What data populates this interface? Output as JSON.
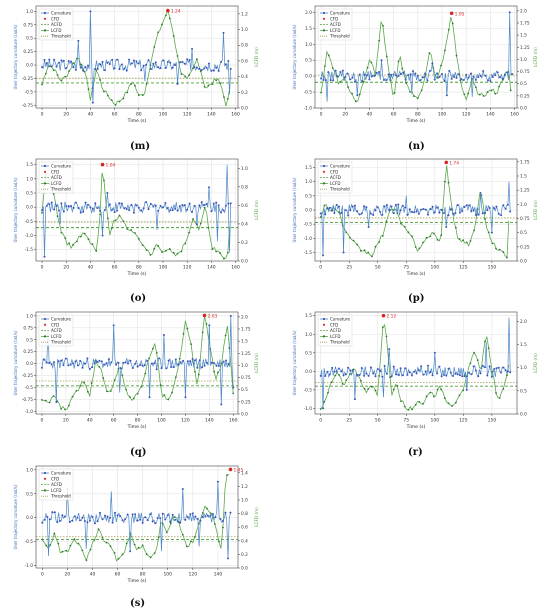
{
  "legend": {
    "curvature": "Curvature",
    "cfd": "CFD",
    "acfd": "ACFD",
    "lcfd": "LCFD",
    "threshold": "Threshold"
  },
  "colors": {
    "curvature_line": "#4a86c8",
    "curvature_marker": "#3a56b8",
    "lcfd_line": "#5aa84a",
    "lcfd_marker": "#2e7a2e",
    "acfd": "#4c9e3a",
    "threshold": "#9c9c4c",
    "cfd": "#d62728",
    "left_axis": "#3b6fb6",
    "right_axis": "#4c9e3a"
  },
  "chart_data": [
    {
      "id": "m",
      "type": "line",
      "caption": "(m)",
      "xlabel": "Time (s)",
      "ylabel_left": "User trajectory curvature (rad/s)",
      "ylabel_right": "LCFD (m)",
      "xlim": [
        -5,
        162
      ],
      "xticks": [
        0,
        20,
        40,
        60,
        80,
        100,
        120,
        140,
        160
      ],
      "ylim_left": [
        -0.8,
        1.1
      ],
      "yticks_left": [
        -0.75,
        -0.5,
        -0.25,
        0.0,
        0.25,
        0.5,
        0.75,
        1.0
      ],
      "ylim_right": [
        0.0,
        1.3
      ],
      "yticks_right": [
        0.0,
        0.2,
        0.4,
        0.6,
        0.8,
        1.0,
        1.2
      ],
      "acfd": 0.32,
      "threshold": 0.38,
      "cfd_peak": {
        "x": 104,
        "label": "1.24",
        "value": 1.24
      },
      "duration": 156,
      "lcfd_x": [
        0,
        5,
        10,
        15,
        20,
        25,
        30,
        35,
        38,
        40,
        45,
        50,
        55,
        60,
        65,
        70,
        75,
        80,
        85,
        90,
        95,
        100,
        104,
        108,
        112,
        115,
        120,
        125,
        128,
        130,
        135,
        140,
        145,
        150,
        152,
        156
      ],
      "lcfd_y": [
        0.3,
        0.55,
        0.5,
        0.35,
        0.4,
        0.55,
        0.65,
        0.45,
        0.3,
        0.1,
        0.5,
        0.25,
        0.15,
        0.05,
        0.1,
        0.2,
        0.35,
        0.15,
        0.2,
        0.6,
        0.9,
        1.1,
        1.24,
        1.0,
        0.65,
        0.45,
        0.35,
        0.5,
        0.62,
        0.55,
        0.25,
        0.3,
        0.4,
        0.2,
        0.0,
        0.3
      ],
      "spikes": [
        [
          40,
          1.0
        ],
        [
          42,
          -0.7
        ],
        [
          30,
          0.45
        ],
        [
          150,
          0.6
        ],
        [
          155,
          -0.55
        ],
        [
          112,
          -0.35
        ],
        [
          85,
          -0.3
        ],
        [
          124,
          0.3
        ]
      ]
    },
    {
      "id": "n",
      "type": "line",
      "caption": "(n)",
      "xlabel": "Time (s)",
      "ylabel_left": "User trajectory curvature (rad/s)",
      "ylabel_right": "LCFD (m)",
      "xlim": [
        -5,
        162
      ],
      "xticks": [
        0,
        20,
        40,
        60,
        80,
        100,
        120,
        140,
        160
      ],
      "ylim_left": [
        -1.0,
        2.2
      ],
      "yticks_left": [
        -1.0,
        -0.5,
        0.0,
        0.5,
        1.0,
        1.5,
        2.0
      ],
      "ylim_right": [
        0.0,
        2.1
      ],
      "yticks_right": [
        0.0,
        0.25,
        0.5,
        0.75,
        1.0,
        1.25,
        1.5,
        1.75,
        2.0
      ],
      "acfd": 0.53,
      "threshold": 0.68,
      "cfd_peak": {
        "x": 108,
        "label": "1.95",
        "value": 1.95
      },
      "duration": 158,
      "lcfd_x": [
        0,
        5,
        10,
        15,
        20,
        25,
        30,
        35,
        40,
        45,
        50,
        55,
        60,
        65,
        70,
        75,
        80,
        85,
        90,
        95,
        100,
        104,
        108,
        112,
        116,
        120,
        125,
        130,
        135,
        140,
        145,
        150,
        155,
        158
      ],
      "lcfd_y": [
        0.3,
        1.2,
        0.8,
        0.5,
        0.6,
        0.3,
        0.1,
        0.5,
        1.0,
        0.7,
        1.9,
        0.9,
        0.2,
        1.1,
        0.5,
        0.3,
        0.2,
        0.5,
        1.2,
        0.6,
        0.9,
        1.4,
        1.95,
        1.1,
        0.4,
        0.2,
        0.6,
        0.3,
        0.25,
        0.4,
        0.3,
        0.6,
        0.8,
        0.1
      ],
      "spikes": [
        [
          5,
          -0.8
        ],
        [
          30,
          -0.6
        ],
        [
          50,
          0.5
        ],
        [
          75,
          -0.55
        ],
        [
          104,
          -0.6
        ],
        [
          125,
          -0.65
        ],
        [
          156,
          2.0
        ],
        [
          92,
          0.4
        ]
      ]
    },
    {
      "id": "o",
      "type": "line",
      "caption": "(o)",
      "xlabel": "Time (s)",
      "ylabel_left": "User trajectory curvature (rad/s)",
      "ylabel_right": "LCFD (m)",
      "xlim": [
        -5,
        162
      ],
      "xticks": [
        0,
        20,
        40,
        60,
        80,
        100,
        120,
        140,
        160
      ],
      "ylim_left": [
        -1.9,
        1.7
      ],
      "yticks_left": [
        -1.5,
        -1.0,
        -0.5,
        0.0,
        0.5,
        1.0,
        1.5
      ],
      "ylim_right": [
        0.0,
        1.1
      ],
      "yticks_right": [
        0.0,
        0.2,
        0.4,
        0.6,
        0.8,
        1.0
      ],
      "acfd": 0.36,
      "threshold": 0.42,
      "cfd_peak": {
        "x": 50,
        "label": "1.04",
        "value": 1.04
      },
      "duration": 156,
      "lcfd_x": [
        0,
        3,
        6,
        10,
        15,
        20,
        25,
        30,
        35,
        40,
        45,
        48,
        50,
        53,
        56,
        60,
        65,
        70,
        75,
        80,
        85,
        90,
        95,
        100,
        105,
        110,
        115,
        120,
        125,
        130,
        135,
        140,
        145,
        150,
        153,
        156
      ],
      "lcfd_y": [
        0.5,
        0.95,
        0.85,
        0.7,
        0.35,
        0.2,
        0.15,
        0.25,
        0.3,
        0.2,
        0.1,
        0.5,
        1.04,
        0.6,
        0.3,
        0.45,
        0.5,
        0.35,
        0.3,
        0.25,
        0.15,
        0.05,
        0.2,
        0.1,
        0.15,
        0.05,
        0.1,
        0.25,
        0.45,
        0.35,
        0.6,
        0.15,
        0.1,
        0.05,
        0.0,
        0.5
      ],
      "spikes": [
        [
          2,
          -1.75
        ],
        [
          15,
          -0.6
        ],
        [
          50,
          -1.0
        ],
        [
          54,
          0.5
        ],
        [
          95,
          -0.8
        ],
        [
          128,
          -0.6
        ],
        [
          138,
          0.7
        ],
        [
          145,
          -1.2
        ],
        [
          153,
          1.5
        ],
        [
          155,
          -1.6
        ]
      ]
    },
    {
      "id": "p",
      "type": "line",
      "caption": "(p)",
      "xlabel": "Time (s)",
      "ylabel_left": "User trajectory curvature (rad/s)",
      "ylabel_right": "LCFD (m)",
      "xlim": [
        -5,
        172
      ],
      "xticks": [
        0,
        25,
        50,
        75,
        100,
        125,
        150
      ],
      "ylim_left": [
        -1.8,
        1.8
      ],
      "yticks_left": [
        -1.5,
        -1.0,
        -0.5,
        0.0,
        0.5,
        1.0,
        1.5
      ],
      "ylim_right": [
        0.0,
        1.8
      ],
      "yticks_right": [
        0.0,
        0.25,
        0.5,
        0.75,
        1.0,
        1.25,
        1.5,
        1.75
      ],
      "acfd": 0.68,
      "threshold": 0.76,
      "cfd_peak": {
        "x": 110,
        "label": "1.74",
        "value": 1.74
      },
      "duration": 166,
      "lcfd_x": [
        0,
        4,
        8,
        12,
        16,
        20,
        25,
        30,
        35,
        40,
        45,
        50,
        55,
        60,
        65,
        70,
        75,
        80,
        85,
        90,
        95,
        100,
        105,
        110,
        115,
        120,
        125,
        130,
        135,
        140,
        145,
        150,
        155,
        160,
        163,
        166
      ],
      "lcfd_y": [
        0.8,
        1.0,
        0.9,
        0.95,
        0.85,
        0.6,
        0.4,
        0.3,
        0.2,
        0.15,
        0.1,
        0.3,
        0.5,
        0.85,
        0.95,
        0.7,
        0.55,
        0.4,
        0.2,
        0.3,
        0.45,
        0.5,
        0.3,
        1.74,
        0.9,
        0.4,
        0.35,
        0.3,
        0.55,
        1.3,
        0.6,
        0.35,
        0.2,
        0.15,
        0.0,
        1.2
      ],
      "spikes": [
        [
          2,
          -1.6
        ],
        [
          20,
          -1.5
        ],
        [
          42,
          -0.6
        ],
        [
          75,
          0.5
        ],
        [
          110,
          -0.6
        ],
        [
          140,
          0.6
        ],
        [
          150,
          -0.8
        ],
        [
          165,
          1.0
        ]
      ]
    },
    {
      "id": "q",
      "type": "line",
      "caption": "(q)",
      "xlabel": "Time (s)",
      "ylabel_left": "User trajectory curvature (rad/s)",
      "ylabel_right": "LCFD (m)",
      "xlim": [
        -5,
        164
      ],
      "xticks": [
        0,
        20,
        40,
        60,
        80,
        100,
        120,
        140,
        160
      ],
      "ylim_left": [
        -1.05,
        1.08
      ],
      "yticks_left": [
        -1.0,
        -0.75,
        -0.5,
        -0.25,
        0.0,
        0.25,
        0.5,
        0.75,
        1.0
      ],
      "ylim_right": [
        0.0,
        2.1
      ],
      "yticks_right": [
        0.0,
        0.25,
        0.5,
        0.75,
        1.0,
        1.25,
        1.5,
        1.75,
        2.0
      ],
      "acfd": 0.58,
      "threshold": 0.68,
      "cfd_peak": {
        "x": 136,
        "label": "2.03",
        "value": 2.03
      },
      "duration": 160,
      "lcfd_x": [
        0,
        5,
        10,
        15,
        20,
        25,
        30,
        35,
        40,
        45,
        50,
        55,
        60,
        65,
        70,
        75,
        80,
        85,
        90,
        95,
        100,
        105,
        110,
        115,
        120,
        125,
        130,
        133,
        136,
        140,
        145,
        150,
        155,
        160
      ],
      "lcfd_y": [
        0.3,
        0.2,
        0.4,
        0.15,
        0.1,
        0.3,
        0.5,
        0.7,
        0.4,
        1.1,
        0.9,
        0.4,
        0.6,
        1.0,
        0.5,
        0.3,
        0.4,
        0.7,
        1.2,
        1.5,
        0.4,
        0.3,
        0.5,
        1.1,
        1.9,
        1.4,
        0.5,
        1.3,
        2.03,
        1.5,
        0.7,
        1.0,
        1.9,
        0.4
      ],
      "spikes": [
        [
          5,
          0.7
        ],
        [
          12,
          -0.8
        ],
        [
          60,
          0.8
        ],
        [
          65,
          -0.6
        ],
        [
          90,
          -0.7
        ],
        [
          102,
          0.6
        ],
        [
          120,
          -0.7
        ],
        [
          140,
          0.8
        ],
        [
          150,
          -0.85
        ],
        [
          158,
          1.0
        ],
        [
          160,
          -0.5
        ]
      ]
    },
    {
      "id": "r",
      "type": "line",
      "caption": "(r)",
      "xlabel": "Time (s)",
      "ylabel_left": "User trajectory curvature (rad/s)",
      "ylabel_right": "LCFD (m)",
      "xlim": [
        -5,
        172
      ],
      "xticks": [
        0,
        25,
        50,
        75,
        100,
        125,
        150
      ],
      "ylim_left": [
        -1.15,
        1.6
      ],
      "yticks_left": [
        -1.0,
        -0.5,
        0.0,
        0.5,
        1.0,
        1.5
      ],
      "ylim_right": [
        0.0,
        2.2
      ],
      "yticks_right": [
        0.0,
        0.5,
        1.0,
        1.5,
        2.0
      ],
      "acfd": 0.6,
      "threshold": 0.68,
      "cfd_peak": {
        "x": 55,
        "label": "2.12",
        "value": 2.12
      },
      "duration": 166,
      "lcfd_x": [
        0,
        5,
        10,
        15,
        20,
        25,
        30,
        35,
        40,
        45,
        50,
        53,
        55,
        58,
        62,
        66,
        70,
        75,
        80,
        85,
        90,
        95,
        100,
        105,
        110,
        115,
        120,
        125,
        130,
        135,
        140,
        145,
        150,
        155,
        160,
        166
      ],
      "lcfd_y": [
        0.1,
        0.4,
        0.7,
        0.9,
        0.6,
        0.8,
        1.0,
        0.7,
        0.5,
        0.6,
        0.4,
        1.4,
        2.12,
        1.6,
        0.4,
        0.7,
        0.3,
        0.15,
        0.1,
        0.3,
        0.2,
        0.5,
        0.4,
        0.6,
        0.3,
        0.2,
        0.3,
        0.5,
        1.0,
        1.4,
        0.9,
        1.7,
        1.0,
        0.3,
        0.5,
        1.2
      ],
      "spikes": [
        [
          2,
          -1.0
        ],
        [
          30,
          -0.75
        ],
        [
          55,
          -0.7
        ],
        [
          60,
          0.6
        ],
        [
          100,
          0.5
        ],
        [
          128,
          -0.5
        ],
        [
          145,
          0.8
        ],
        [
          165,
          1.45
        ]
      ]
    },
    {
      "id": "s",
      "type": "line",
      "caption": "(s)",
      "xlabel": "Time (s)",
      "ylabel_left": "User trajectory curvature (rad/s)",
      "ylabel_right": "LCFD (m)",
      "xlim": [
        -5,
        156
      ],
      "xticks": [
        0,
        20,
        40,
        60,
        80,
        100,
        120,
        140
      ],
      "ylim_left": [
        -1.05,
        1.08
      ],
      "yticks_left": [
        -1.0,
        -0.5,
        0.0,
        0.5,
        1.0
      ],
      "ylim_right": [
        0.0,
        1.5
      ],
      "yticks_right": [
        0.0,
        0.2,
        0.4,
        0.6,
        0.8,
        1.0,
        1.2,
        1.4
      ],
      "acfd": 0.42,
      "threshold": 0.46,
      "cfd_peak": {
        "x": 150,
        "label": "1.45",
        "value": 1.45
      },
      "duration": 150,
      "lcfd_x": [
        0,
        5,
        10,
        15,
        20,
        25,
        30,
        35,
        40,
        45,
        50,
        55,
        60,
        65,
        70,
        75,
        80,
        85,
        90,
        95,
        100,
        105,
        110,
        115,
        120,
        125,
        130,
        135,
        140,
        143,
        146,
        150
      ],
      "lcfd_y": [
        0.4,
        0.3,
        0.5,
        0.2,
        0.25,
        0.4,
        0.35,
        0.1,
        0.35,
        0.55,
        0.4,
        0.3,
        0.1,
        0.2,
        0.5,
        0.25,
        0.35,
        0.15,
        0.2,
        0.7,
        0.5,
        0.8,
        0.6,
        0.3,
        0.4,
        0.65,
        0.9,
        0.8,
        0.5,
        0.2,
        1.3,
        1.45
      ],
      "spikes": [
        [
          5,
          -0.8
        ],
        [
          20,
          0.6
        ],
        [
          35,
          -0.65
        ],
        [
          55,
          0.55
        ],
        [
          70,
          -0.7
        ],
        [
          95,
          -0.7
        ],
        [
          112,
          0.6
        ],
        [
          125,
          -0.6
        ],
        [
          140,
          0.75
        ],
        [
          148,
          -0.85
        ]
      ]
    }
  ]
}
